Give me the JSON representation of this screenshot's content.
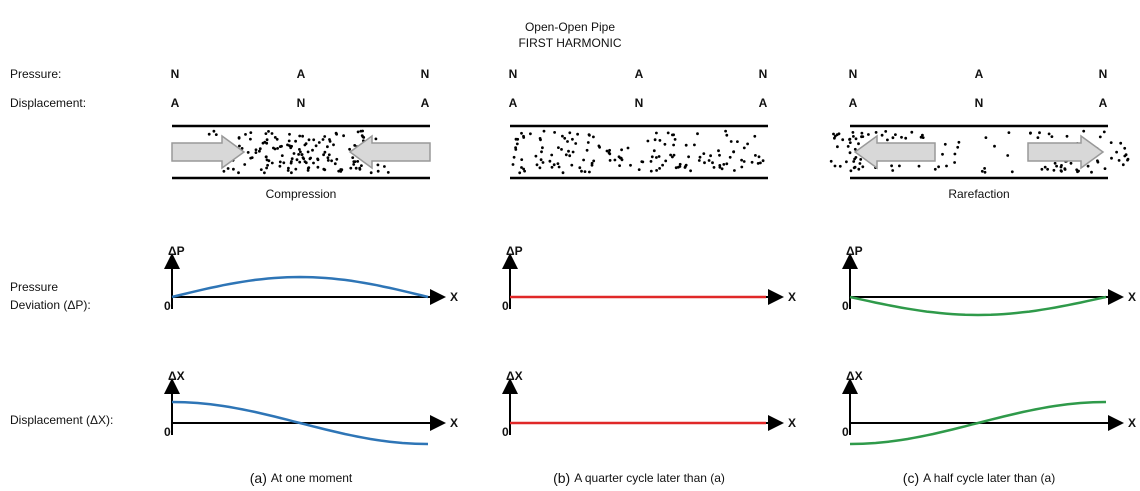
{
  "header": {
    "title": "Open-Open Pipe",
    "subtitle": "FIRST HARMONIC"
  },
  "row_labels": {
    "pressure": "Pressure:",
    "displacement": "Displacement:",
    "pressure_deviation": [
      "Pressure",
      "Deviation (ΔP):"
    ],
    "displacement_deviation": "Displacement (ΔX):"
  },
  "panels": [
    {
      "pressure_nodes": [
        "N",
        "A",
        "N"
      ],
      "displacement_nodes": [
        "A",
        "N",
        "A"
      ],
      "tube_label": "Compression",
      "dp_axis": "ΔP",
      "dp_origin": "0",
      "dp_x_axis": "X",
      "dx_axis": "ΔX",
      "dx_origin": "0",
      "dx_x_axis": "X",
      "caption_letter": "(a)",
      "caption_text": "At one moment"
    },
    {
      "pressure_nodes": [
        "N",
        "A",
        "N"
      ],
      "displacement_nodes": [
        "A",
        "N",
        "A"
      ],
      "dp_axis": "ΔP",
      "dp_origin": "0",
      "dp_x_axis": "X",
      "dx_axis": "ΔX",
      "dx_origin": "0",
      "dx_x_axis": "X",
      "caption_letter": "(b)",
      "caption_text": "A quarter cycle  later than (a)"
    },
    {
      "pressure_nodes": [
        "N",
        "A",
        "N"
      ],
      "displacement_nodes": [
        "A",
        "N",
        "A"
      ],
      "tube_label": "Rarefaction",
      "dp_axis": "ΔP",
      "dp_origin": "0",
      "dp_x_axis": "X",
      "dx_axis": "ΔX",
      "dx_origin": "0",
      "dx_x_axis": "X",
      "caption_letter": "(c)",
      "caption_text": "A half cycle later than (a)"
    }
  ]
}
